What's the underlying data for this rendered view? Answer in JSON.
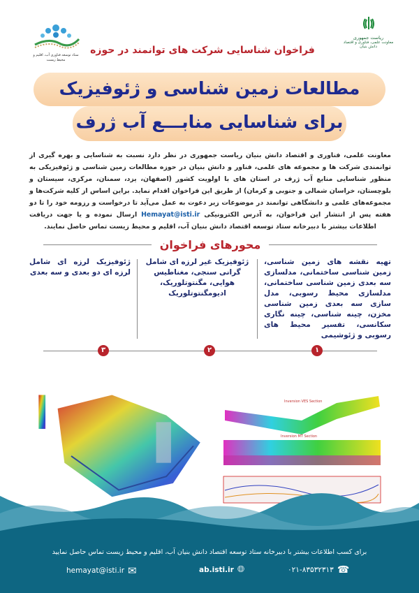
{
  "header": {
    "left_logo_text": "ستاد توسعه فناوری آب، اقلیم و محیط زیست",
    "right_logo_text": [
      "ریاست جمهوری",
      "معاونت علمی، فناوری و اقتصاد دانش بنیان"
    ],
    "subtitle": "فراخوان شناسایی شرکت های توانمند در حوزه"
  },
  "title": {
    "line1": "مطالعات زمین شناسی و ژئوفیزیک",
    "line2": "برای شناسایی منابـــع آب ژرف"
  },
  "intro": {
    "part1": "معاونت علمی، فناوری و اقتصاد دانش بنیان ریاست جمهوری در نظر دارد نسبت به شناسایی و بهره گیری از توانمندی شرکت ها و مجموعه های علمی، فناور و دانش بنیان در حوزه مطالعات زمین شناسی و ژئوفیزیکی به منظور شناسایی منابع آب ژرف در استان های با اولویت کشور (اصفهان، یزد، سمنان، مرکزی، سیستان و بلوچستان، خراسان شمالی و جنوبی و کرمان) از طریق این فراخوان اقدام نماید. براین اساس از کلیه شرکت‌ها و مجموعه‌های علمی و دانشگاهی توانمند در موضوعات زیر دعوت به عمل می‌آید تا درخواست و رزومه خود را تا دو هفته پس از انتشار این فراخوان، به آدرس الکترونیکی",
    "email": "Hemayat@isti.ir",
    "part2": "ارسال نموده و یا جهت دریافت اطلاعات بیشتر با دبیرخانه ستاد توسعه اقتصاد دانش بنیان آب، اقلیم و محیط زیست تماس حاصل نمایند."
  },
  "axes": {
    "title": "محورهای فراخوان",
    "items": [
      {
        "number": "۱",
        "text": "تهیه نقشه های زمین شناسی، زمین شناسی ساختمانی، مدلسازی سه بعدی زمین شناسی ساختمانی، مدلسازی محیط رسوبی، مدل سازی سه بعدی زمین شناسی مخزن، چینه شناسی، چینه نگاری سکانسی، تفسیر محیط های رسوبی و ژئوشیمی"
      },
      {
        "number": "۲",
        "text": "ژئوفیزیک غیر لرزه ای شامل گرانی سنجی، مغناطیس هوایی، مگنتوتلوریک، ادیومگنتوتلوریک"
      },
      {
        "number": "۳",
        "text": "ژئوفیزیک لرزه ای شامل لرزه ای دو بعدی و سه بعدی"
      }
    ]
  },
  "figures": {
    "section1_label": "Inversion VES Section",
    "section2_label": "Inversion MT Section"
  },
  "footer": {
    "text": "برای کسب اطلاعات بیشتر با دبیرخانه ستاد توسعه اقتصاد دانش بنیان آب، اقلیم و محیط زیست تماس حاصل نمایید",
    "email": "hemayat@isti.ir",
    "website": "ab.isti.ir",
    "phone": "۰۲۱-۸۳۵۳۲۳۱۳"
  },
  "colors": {
    "accent_red": "#b8242c",
    "title_blue": "#1e2a8f",
    "banner": "#f8cfa3",
    "footer": "#0e6682",
    "wave": "#2a8aa3"
  }
}
